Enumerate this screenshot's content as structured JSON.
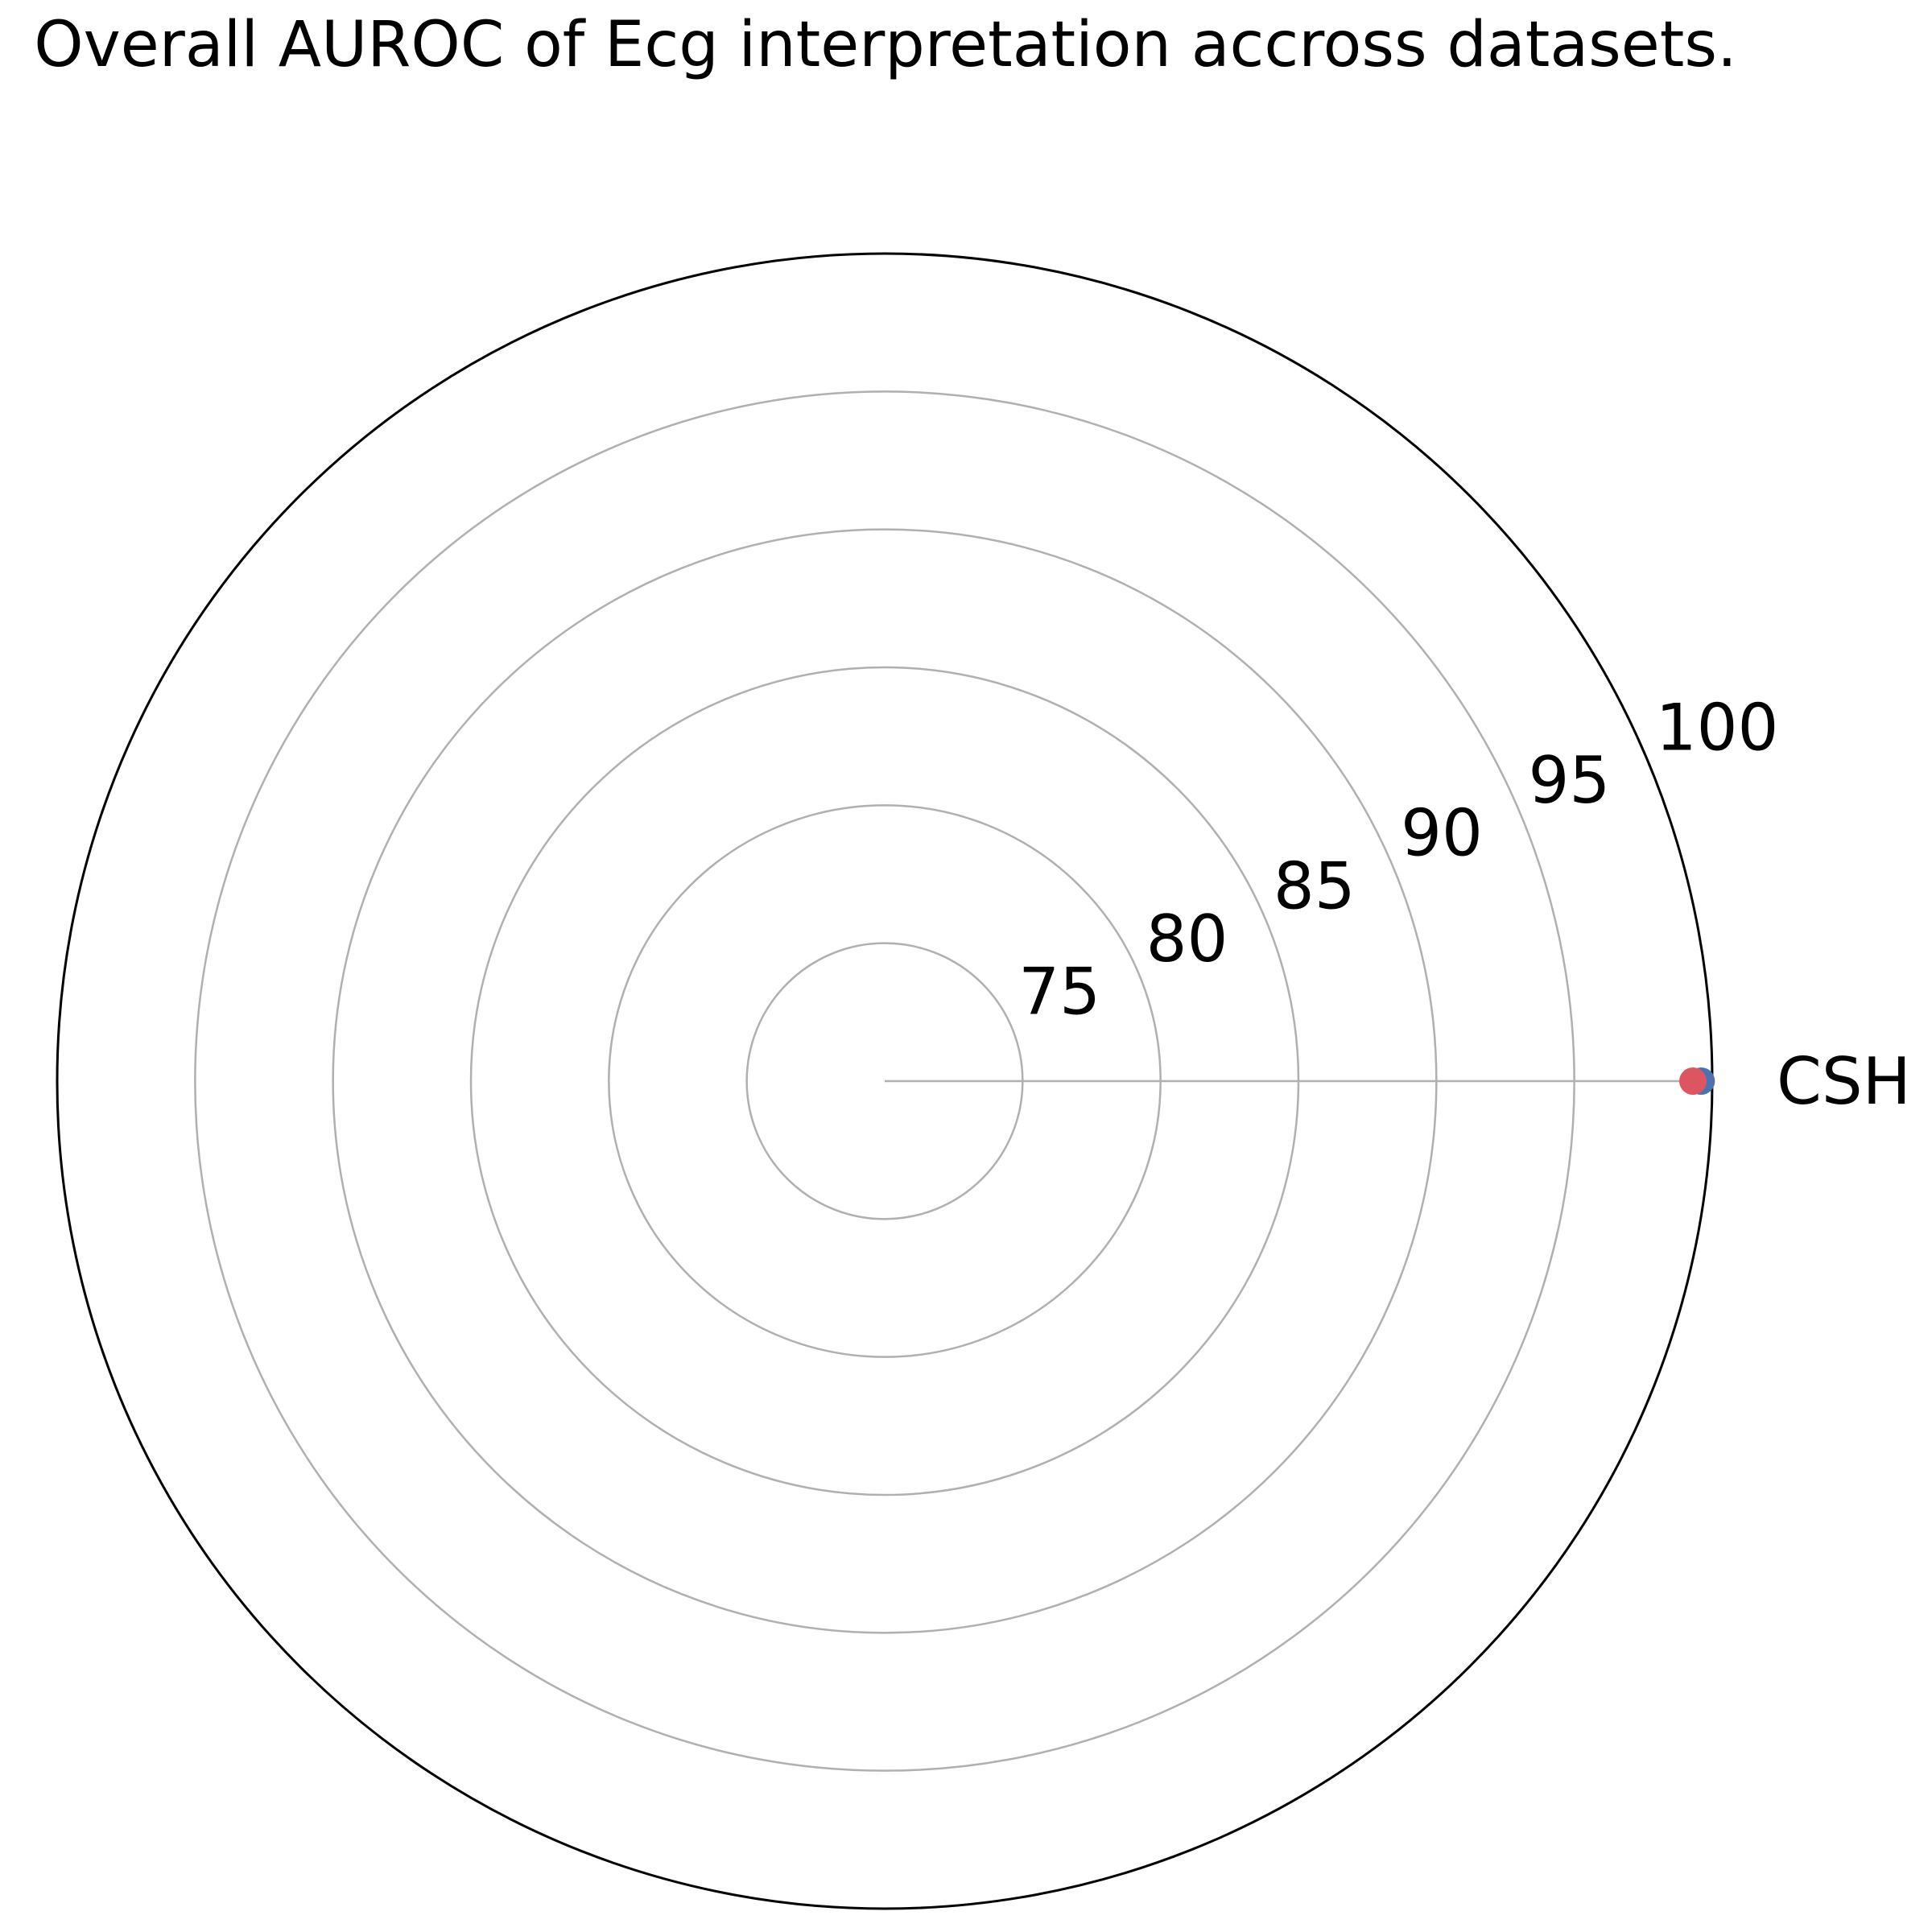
{
  "chart_data": {
    "type": "radar",
    "title": "Overall AUROC of Ecg interpretation accross datasets.",
    "categories": [
      "CSH"
    ],
    "series": [
      {
        "values": [
          99.6
        ],
        "color": "#4c72b0"
      },
      {
        "values": [
          99.3
        ],
        "color": "#dd5560"
      }
    ],
    "rlim": [
      70,
      100
    ],
    "r_ticks": [
      75,
      80,
      85,
      90,
      95,
      100
    ],
    "grid": true,
    "colors": {
      "grid": "#b0b0b0",
      "outer_ring": "#000000",
      "text": "#000000"
    }
  }
}
